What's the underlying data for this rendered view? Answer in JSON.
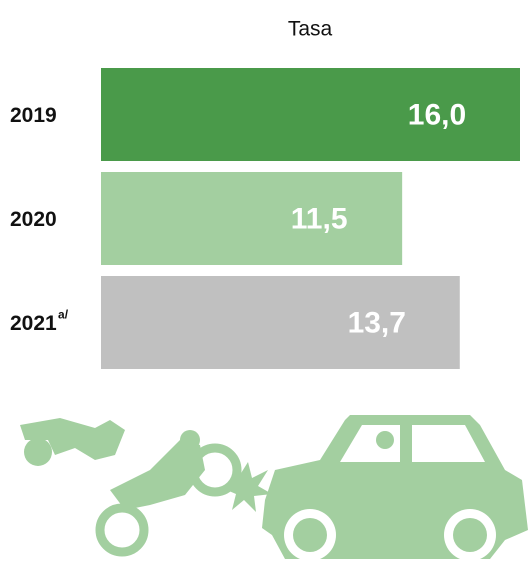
{
  "chart_data": {
    "type": "bar",
    "orientation": "horizontal",
    "title": "Tasa",
    "categories": [
      "2019",
      "2020",
      "2021"
    ],
    "category_superscripts": [
      null,
      null,
      "a/"
    ],
    "values": [
      16.0,
      11.5,
      13.7
    ],
    "value_labels": [
      "16,0",
      "11,5",
      "13,7"
    ],
    "colors": [
      "#4a9a4a",
      "#a3cfa0",
      "#c0c0c0"
    ]
  }
}
